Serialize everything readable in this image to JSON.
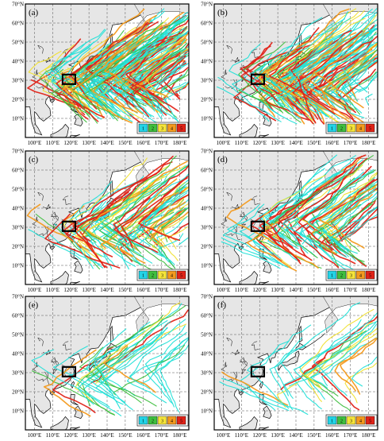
{
  "figure": {
    "panels": [
      {
        "id": "a",
        "label": "(a)",
        "density": 1.0
      },
      {
        "id": "b",
        "label": "(b)",
        "density": 0.85
      },
      {
        "id": "c",
        "label": "(c)",
        "density": 0.55
      },
      {
        "id": "d",
        "label": "(d)",
        "density": 0.5
      },
      {
        "id": "e",
        "label": "(e)",
        "density": 0.22
      },
      {
        "id": "f",
        "label": "(f)",
        "density": 0.18
      }
    ],
    "lat_labels": [
      "10°N",
      "20°N",
      "30°N",
      "40°N",
      "50°N",
      "60°N",
      "70°N"
    ],
    "lon_labels": [
      "100°E",
      "110°E",
      "120°E",
      "130°E",
      "140°E",
      "150°E",
      "160°E",
      "170°E",
      "180°E"
    ],
    "legend": [
      {
        "label": "1",
        "color": "#22d3e6"
      },
      {
        "label": "2",
        "color": "#3fbf3f"
      },
      {
        "label": "3",
        "color": "#f5e43a"
      },
      {
        "label": "4",
        "color": "#f39a1e"
      },
      {
        "label": "5",
        "color": "#e02318"
      }
    ],
    "colors": {
      "land": "#e6e6e6",
      "ocean": "#ffffff",
      "track_cyan": "#22e0d8",
      "track_green": "#3fbf3f",
      "track_yellow": "#f0e030",
      "track_orange": "#f39a1e",
      "track_red": "#e02318",
      "box": "#000000"
    }
  }
}
